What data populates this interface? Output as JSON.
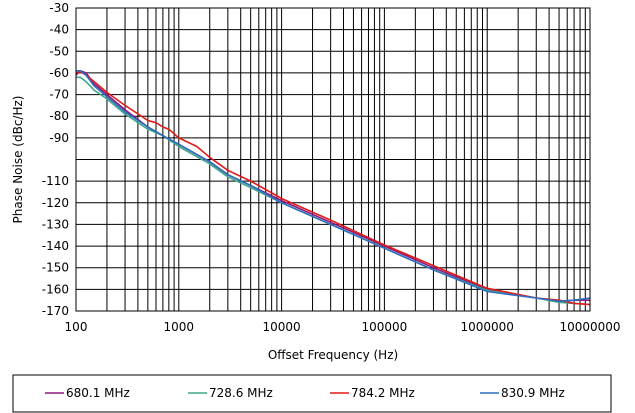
{
  "chart_data": {
    "type": "line",
    "title": "",
    "xlabel": "Offset Frequency (Hz)",
    "ylabel": "Phase Noise (dBc/Hz)",
    "x_scale": "log",
    "xlim": [
      100,
      10000000
    ],
    "ylim": [
      -170,
      -30
    ],
    "x_ticks": [
      "100",
      "1000",
      "10000",
      "100000",
      "1000000",
      "10000000"
    ],
    "y_ticks": [
      "-30",
      "-40",
      "-50",
      "-60",
      "-70",
      "-80",
      "-90",
      "-110",
      "-120",
      "-130",
      "-140",
      "-150",
      "-160",
      "-170"
    ],
    "grid": true,
    "legend_position": "bottom",
    "series": [
      {
        "name": "680.1 MHz",
        "color": "#8B1A7A",
        "x": [
          100,
          110,
          125,
          150,
          200,
          300,
          500,
          700,
          1000,
          2000,
          3000,
          5000,
          10000,
          30000,
          100000,
          300000,
          1000000,
          3000000,
          5000000,
          7000000,
          10000000
        ],
        "y": [
          -61,
          -59,
          -60,
          -65,
          -70,
          -77,
          -85,
          -89,
          -93,
          -101,
          -107,
          -112,
          -119,
          -129,
          -140,
          -150,
          -160,
          -164,
          -165.5,
          -165,
          -165
        ]
      },
      {
        "name": "728.6 MHz",
        "color": "#3FA88C",
        "x": [
          100,
          110,
          125,
          150,
          200,
          300,
          500,
          700,
          1000,
          2000,
          3000,
          5000,
          10000,
          30000,
          100000,
          300000,
          1000000,
          3000000,
          5000000,
          7000000,
          10000000
        ],
        "y": [
          -62,
          -62,
          -64,
          -68,
          -72,
          -79,
          -86,
          -89,
          -94,
          -102,
          -108,
          -113,
          -120,
          -130,
          -141,
          -151,
          -160.5,
          -164,
          -166,
          -166.5,
          -167
        ]
      },
      {
        "name": "784.2 MHz",
        "color": "#E31A1A",
        "x": [
          100,
          110,
          125,
          150,
          200,
          300,
          500,
          600,
          700,
          800,
          1000,
          1500,
          2000,
          3000,
          5000,
          10000,
          30000,
          100000,
          300000,
          1000000,
          3000000,
          5000000,
          7000000,
          10000000
        ],
        "y": [
          -60,
          -59.5,
          -61,
          -64,
          -69,
          -75,
          -82,
          -83,
          -85,
          -86,
          -90,
          -94,
          -99,
          -105,
          -110,
          -118,
          -128,
          -139.5,
          -149,
          -159.5,
          -164,
          -165,
          -166.5,
          -167
        ]
      },
      {
        "name": "830.9 MHz",
        "color": "#2E6FC0",
        "x": [
          100,
          110,
          125,
          150,
          200,
          300,
          500,
          700,
          1000,
          2000,
          3000,
          5000,
          10000,
          30000,
          100000,
          300000,
          1000000,
          3000000,
          5000000,
          7000000,
          10000000
        ],
        "y": [
          -59,
          -59,
          -61,
          -66,
          -71,
          -78,
          -85,
          -89,
          -93,
          -101,
          -107,
          -112,
          -120,
          -130,
          -141,
          -151,
          -161,
          -164,
          -165.5,
          -165,
          -164
        ]
      }
    ]
  }
}
